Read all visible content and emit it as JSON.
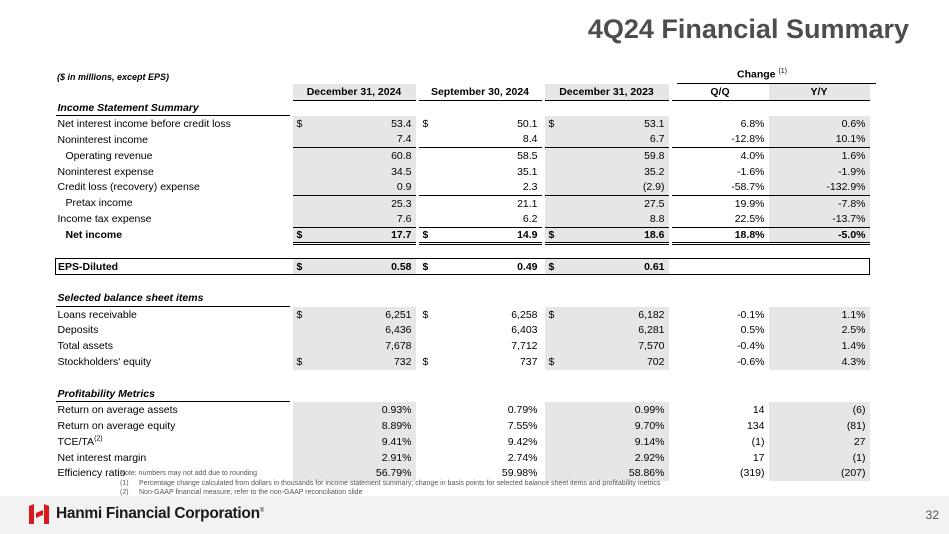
{
  "slide": {
    "title": "4Q24 Financial Summary",
    "units_note": "($ in millions, except EPS)",
    "change_label": "Change",
    "change_footnote": "(1)",
    "page_number": "32"
  },
  "columns": {
    "c1": "December 31, 2024",
    "c2": "September 30, 2024",
    "c3": "December 31, 2023",
    "qq": "Q/Q",
    "yy": "Y/Y"
  },
  "sections": {
    "income": "Income Statement Summary",
    "balance": "Selected balance sheet items",
    "profit": "Profitability Metrics"
  },
  "income_rows": [
    {
      "label": "Net interest income before credit loss",
      "cur": "$",
      "v1": "53.4",
      "v2": "50.1",
      "v3": "53.1",
      "qq": "6.8%",
      "yy": "0.6%"
    },
    {
      "label": "Noninterest income",
      "cur": "",
      "v1": "7.4",
      "v2": "8.4",
      "v3": "6.7",
      "qq": "-12.8%",
      "yy": "10.1%"
    },
    {
      "label": "Operating revenue",
      "cur": "",
      "v1": "60.8",
      "v2": "58.5",
      "v3": "59.8",
      "qq": "4.0%",
      "yy": "1.6%"
    },
    {
      "label": "Noninterest expense",
      "cur": "",
      "v1": "34.5",
      "v2": "35.1",
      "v3": "35.2",
      "qq": "-1.6%",
      "yy": "-1.9%"
    },
    {
      "label": "Credit loss (recovery) expense",
      "cur": "",
      "v1": "0.9",
      "v2": "2.3",
      "v3": "(2.9)",
      "qq": "-58.7%",
      "yy": "-132.9%"
    },
    {
      "label": "Pretax income",
      "cur": "",
      "v1": "25.3",
      "v2": "21.1",
      "v3": "27.5",
      "qq": "19.9%",
      "yy": "-7.8%"
    },
    {
      "label": "Income tax expense",
      "cur": "",
      "v1": "7.6",
      "v2": "6.2",
      "v3": "8.8",
      "qq": "22.5%",
      "yy": "-13.7%"
    },
    {
      "label": "Net income",
      "cur": "$",
      "v1": "17.7",
      "v2": "14.9",
      "v3": "18.6",
      "qq": "18.8%",
      "yy": "-5.0%"
    }
  ],
  "eps": {
    "label": "EPS-Diluted",
    "cur": "$",
    "v1": "0.58",
    "v2": "0.49",
    "v3": "0.61"
  },
  "balance_rows": [
    {
      "label": "Loans receivable",
      "cur": "$",
      "v1": "6,251",
      "v2": "6,258",
      "v3": "6,182",
      "qq": "-0.1%",
      "yy": "1.1%"
    },
    {
      "label": "Deposits",
      "cur": "",
      "v1": "6,436",
      "v2": "6,403",
      "v3": "6,281",
      "qq": "0.5%",
      "yy": "2.5%"
    },
    {
      "label": "Total assets",
      "cur": "",
      "v1": "7,678",
      "v2": "7,712",
      "v3": "7,570",
      "qq": "-0.4%",
      "yy": "1.4%"
    },
    {
      "label": "Stockholders' equity",
      "cur": "$",
      "v1": "732",
      "v2": "737",
      "v3": "702",
      "qq": "-0.6%",
      "yy": "4.3%"
    }
  ],
  "profit_rows": [
    {
      "label": "Return on average assets",
      "sup": "",
      "v1": "0.93%",
      "v2": "0.79%",
      "v3": "0.99%",
      "qq": "14",
      "yy": "(6)"
    },
    {
      "label": "Return on average equity",
      "sup": "",
      "v1": "8.89%",
      "v2": "7.55%",
      "v3": "9.70%",
      "qq": "134",
      "yy": "(81)"
    },
    {
      "label": "TCE/TA",
      "sup": "(2)",
      "v1": "9.41%",
      "v2": "9.42%",
      "v3": "9.14%",
      "qq": "(1)",
      "yy": "27"
    },
    {
      "label": "Net interest margin",
      "sup": "",
      "v1": "2.91%",
      "v2": "2.74%",
      "v3": "2.92%",
      "qq": "17",
      "yy": "(1)"
    },
    {
      "label": "Efficiency ratio",
      "sup": "",
      "v1": "56.79%",
      "v2": "59.98%",
      "v3": "58.86%",
      "qq": "(319)",
      "yy": "(207)"
    }
  ],
  "notes": {
    "main": "Note: numbers may not add due to rounding",
    "n1_num": "(1)",
    "n1": "Percentage change calculated from dollars in thousands for income statement summary; change in basis points for selected balance sheet items and profitability metrics",
    "n2_num": "(2)",
    "n2": "Non-GAAP financial measure, refer to the non-GAAP reconciliation slide"
  },
  "footer": {
    "logo_text": "Hanmi Financial Corporation",
    "trademark": "®",
    "brand_color": "#d7191f"
  }
}
